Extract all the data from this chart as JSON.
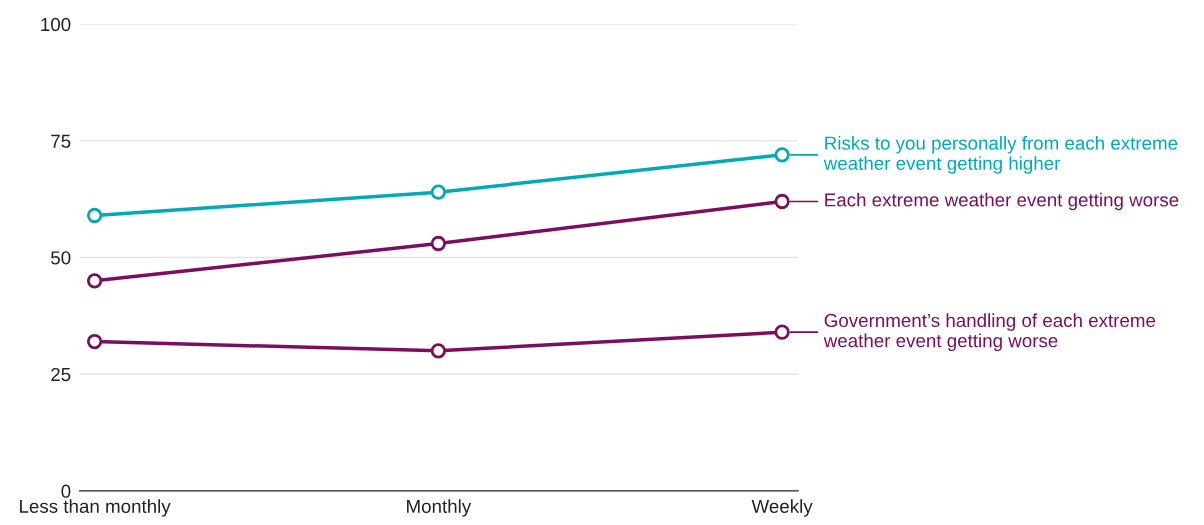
{
  "chart_data": {
    "type": "line",
    "categories": [
      "Less than monthly",
      "Monthly",
      "Weekly"
    ],
    "series": [
      {
        "name": "Risks to you personally from each extreme weather event getting higher",
        "color": "#00abb5",
        "values": [
          59,
          64,
          72
        ]
      },
      {
        "name": "Each extreme weather event getting worse",
        "color": "#7b0f5e",
        "values": [
          45,
          53,
          62
        ]
      },
      {
        "name": "Government’s handling of each extreme weather event getting worse",
        "color": "#7b0f5e",
        "values": [
          32,
          30,
          34
        ]
      }
    ],
    "ylim": [
      0,
      100
    ],
    "yticks": [
      0,
      25,
      50,
      75,
      100
    ],
    "grid": "y",
    "marker": "circle",
    "line_style": "solid",
    "legend": "right"
  }
}
